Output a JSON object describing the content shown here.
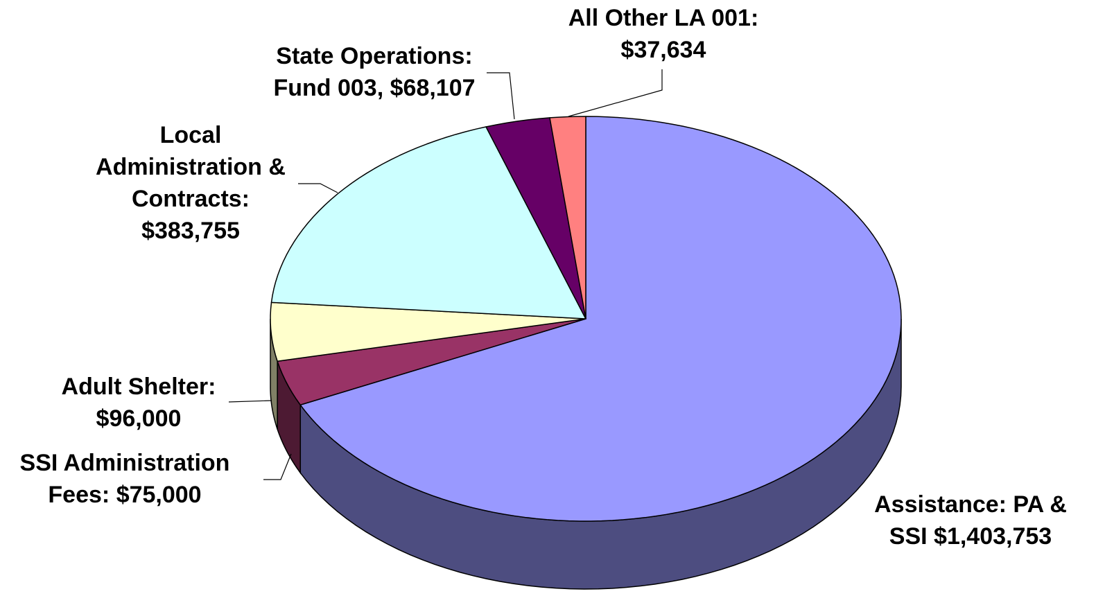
{
  "chart_data": {
    "type": "pie",
    "categories": [
      "Assistance: PA & SSI",
      "SSI Administration Fees:",
      "Adult Shelter:",
      "Local Administration & Contracts:",
      "State Operations: Fund 003,",
      "All Other LA 001:"
    ],
    "values": [
      1403753,
      75000,
      96000,
      383755,
      68107,
      37634
    ],
    "value_labels": [
      "$1,403,753",
      "$75,000",
      "$96,000",
      "$383,755",
      "$68,107",
      "$37,634"
    ],
    "colors": [
      "#9999ff",
      "#993366",
      "#ffffcc",
      "#ccffff",
      "#660066",
      "#ff8080"
    ]
  }
}
